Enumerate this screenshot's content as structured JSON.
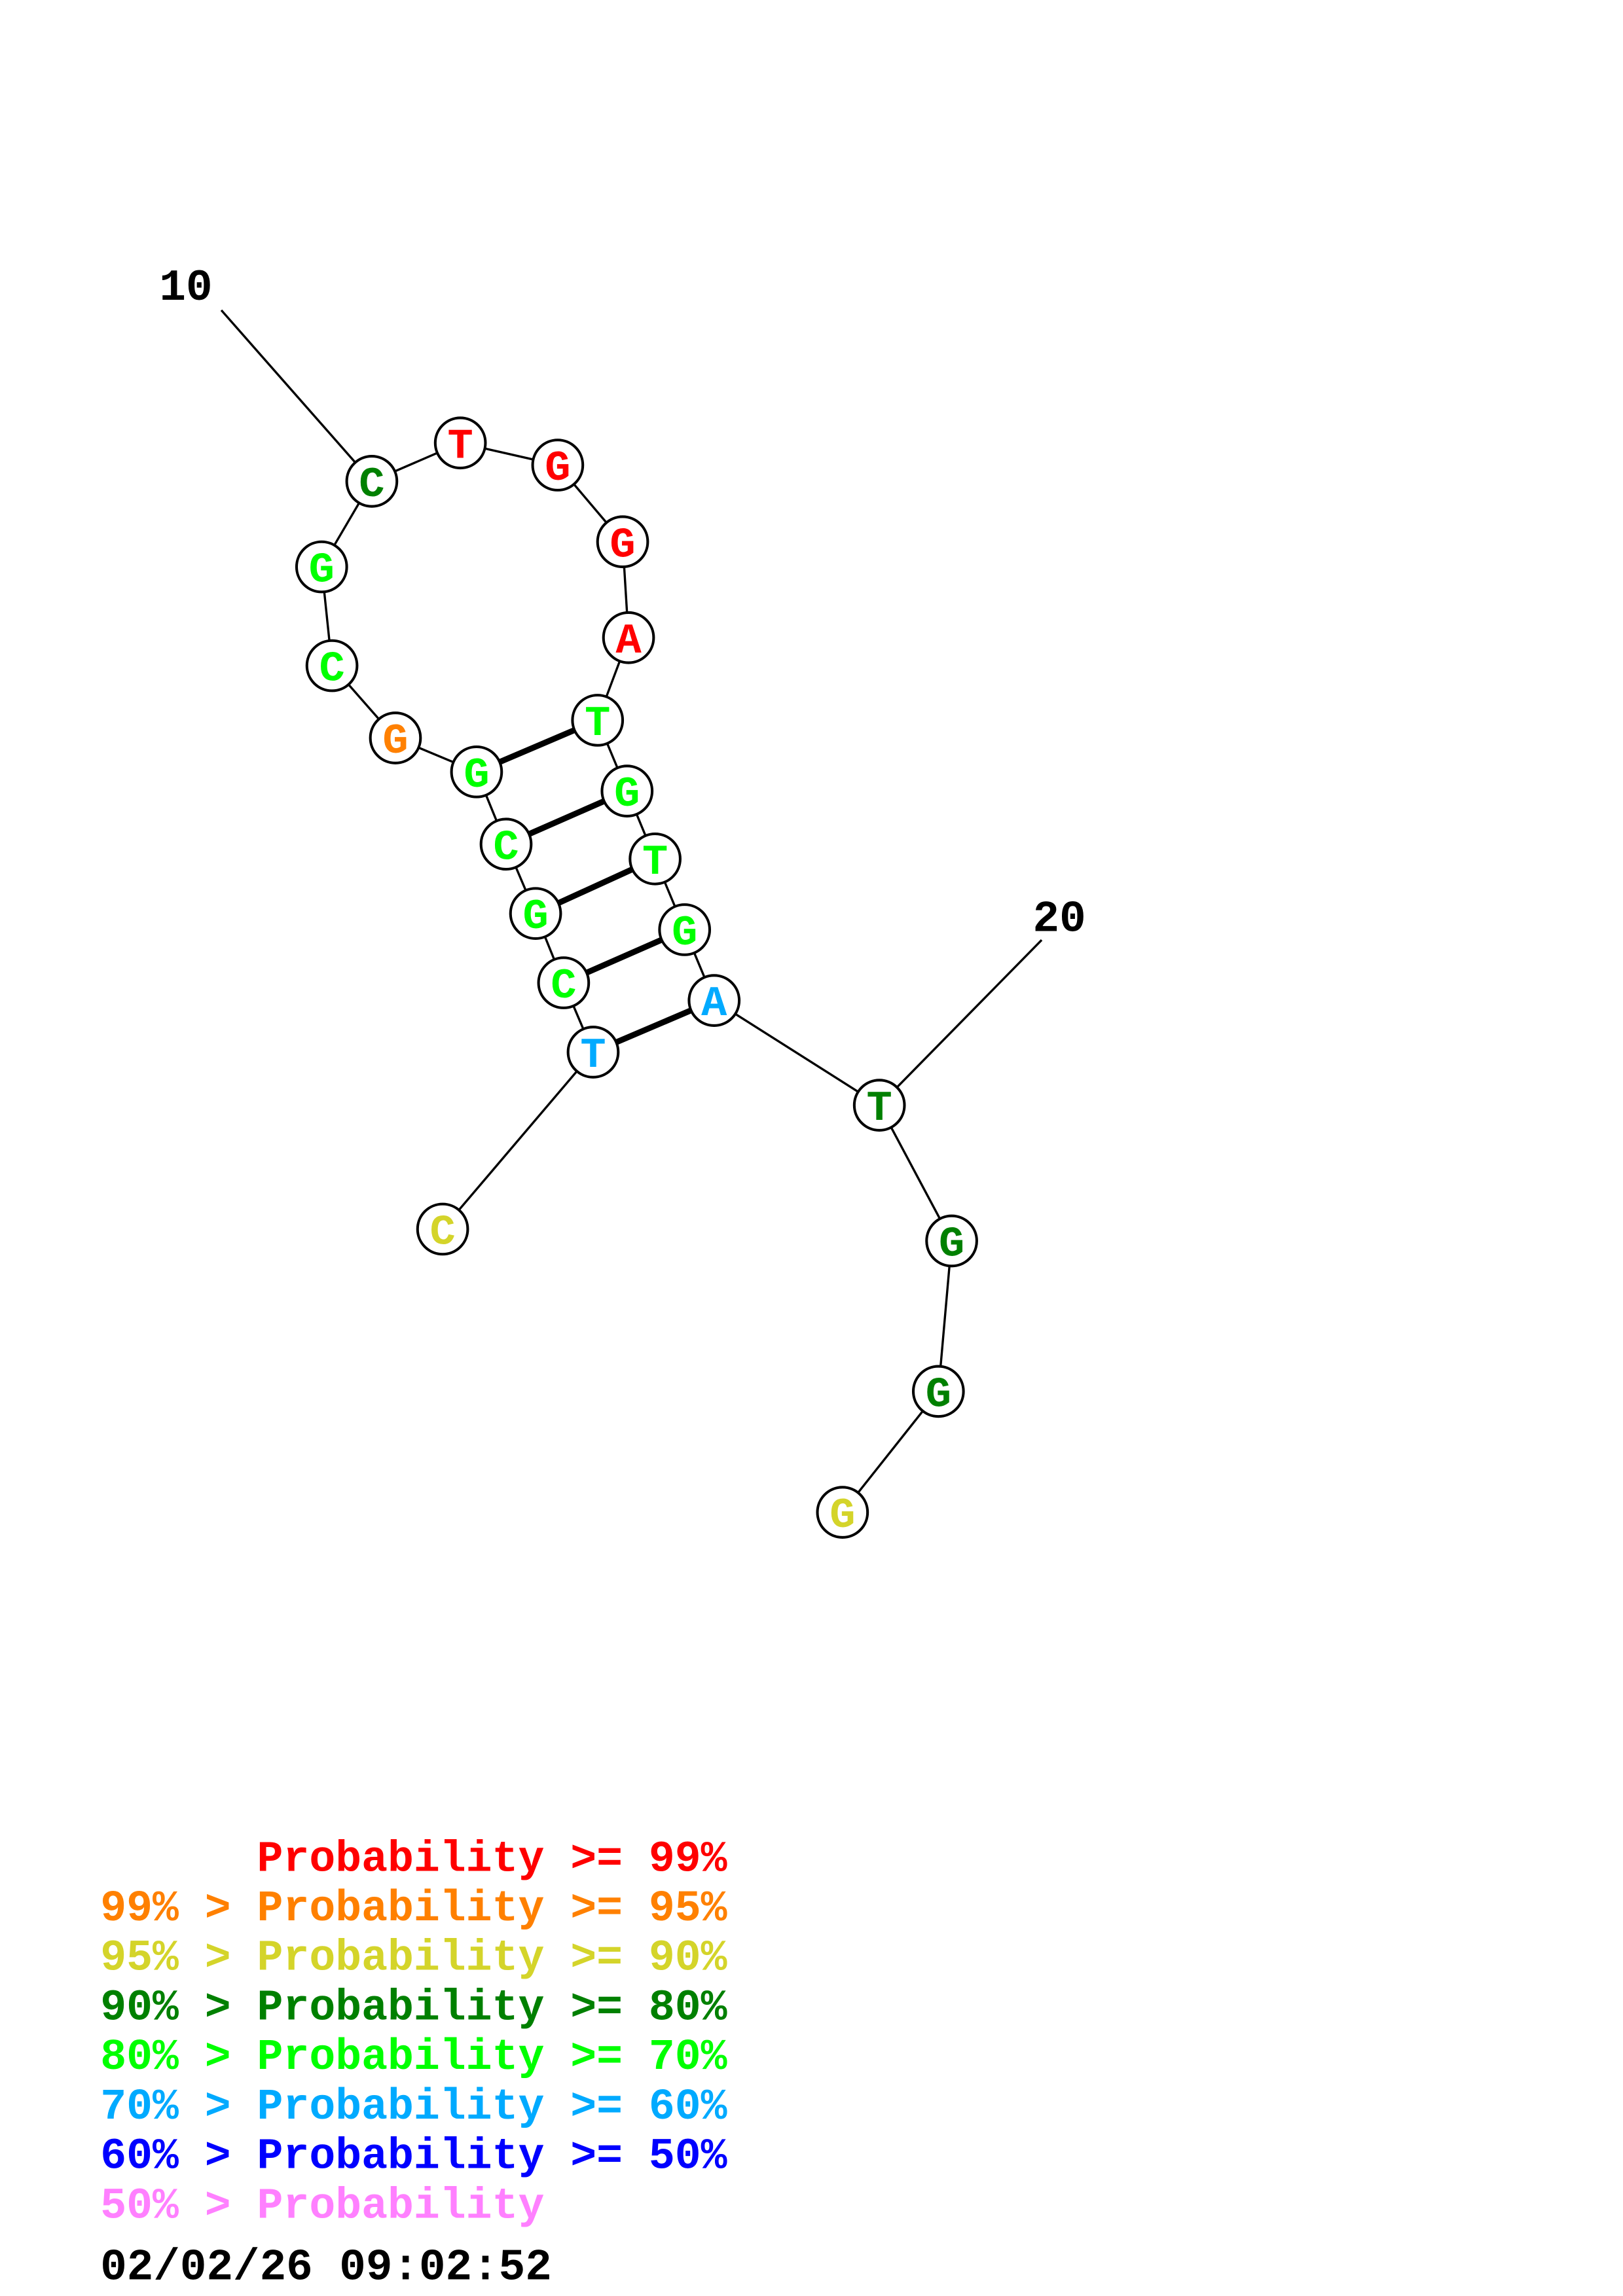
{
  "structure": {
    "nucleotides": [
      {
        "base": "C",
        "level": 2
      },
      {
        "base": "T",
        "level": 5
      },
      {
        "base": "C",
        "level": 4
      },
      {
        "base": "G",
        "level": 4
      },
      {
        "base": "C",
        "level": 4
      },
      {
        "base": "G",
        "level": 4
      },
      {
        "base": "G",
        "level": 1
      },
      {
        "base": "C",
        "level": 4
      },
      {
        "base": "G",
        "level": 4
      },
      {
        "base": "C",
        "level": 3
      },
      {
        "base": "T",
        "level": 0
      },
      {
        "base": "G",
        "level": 0
      },
      {
        "base": "G",
        "level": 0
      },
      {
        "base": "A",
        "level": 0
      },
      {
        "base": "T",
        "level": 4
      },
      {
        "base": "G",
        "level": 4
      },
      {
        "base": "T",
        "level": 4
      },
      {
        "base": "G",
        "level": 4
      },
      {
        "base": "A",
        "level": 5
      },
      {
        "base": "T",
        "level": 3
      },
      {
        "base": "G",
        "level": 3
      },
      {
        "base": "G",
        "level": 3
      },
      {
        "base": "G",
        "level": 2
      }
    ],
    "base_pairs": [
      [
        2,
        19
      ],
      [
        3,
        18
      ],
      [
        4,
        17
      ],
      [
        5,
        16
      ],
      [
        6,
        15
      ]
    ],
    "position_labels": [
      {
        "position": 10,
        "text": "10"
      },
      {
        "position": 20,
        "text": "20"
      }
    ]
  },
  "legend": {
    "colors": [
      "#ff0000",
      "#ff8000",
      "#d4d42a",
      "#008000",
      "#00ff00",
      "#00aaff",
      "#0000ff",
      "#ff80ff"
    ],
    "rows": [
      "      Probability >= 99%",
      "99% > Probability >= 95%",
      "95% > Probability >= 90%",
      "90% > Probability >= 80%",
      "80% > Probability >= 70%",
      "70% > Probability >= 60%",
      "60% > Probability >= 50%",
      "50% > Probability"
    ]
  },
  "timestamp": "02/02/26 09:02:52"
}
